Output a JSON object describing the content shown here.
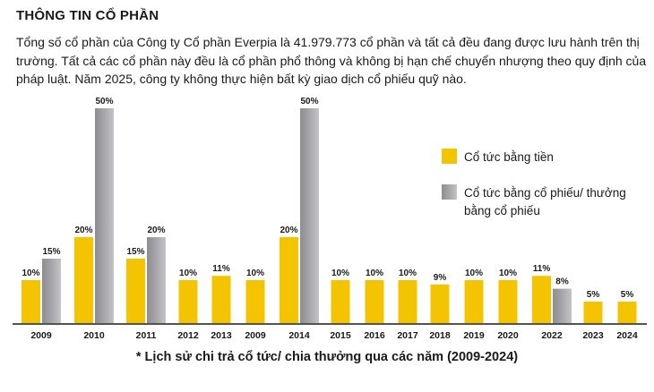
{
  "section_title": "THÔNG TIN CỔ PHẦN",
  "intro_text": "Tổng số cổ phần của Công ty Cổ phần Everpia là 41.979.773 cổ phần và tất cả đều đang được lưu hành trên thị trường. Tất cả các cổ phần này đều là cổ phần phổ thông và không bị hạn chế chuyển nhượng theo quy định của pháp luật. Năm 2025, công ty không thực hiện bất kỳ giao dịch cổ phiếu quỹ nào.",
  "caption": "* Lịch sử chi trả cổ tức/ chia thưởng qua các năm (2009-2024)",
  "colors": {
    "cash": "#F5C400",
    "stock": "#A4A4A8"
  },
  "chart_data": {
    "type": "bar",
    "categories": [
      "2009",
      "2010",
      "2011",
      "2012",
      "2013",
      "2009",
      "2014",
      "2015",
      "2016",
      "2017",
      "2018",
      "2019",
      "2020",
      "2022",
      "2023",
      "2024"
    ],
    "series": [
      {
        "name": "Cổ tức bằng tiền",
        "color": "#F5C400",
        "values": [
          10,
          20,
          15,
          10,
          11,
          10,
          20,
          10,
          10,
          10,
          9,
          10,
          10,
          11,
          5,
          5
        ]
      },
      {
        "name": "Cổ tức bằng cổ phiếu/ thưởng bằng cổ phiếu",
        "color": "#A4A4A8",
        "values": [
          15,
          50,
          20,
          null,
          null,
          null,
          50,
          null,
          null,
          null,
          null,
          null,
          null,
          8,
          null,
          null
        ]
      }
    ],
    "legend": [
      {
        "lines": [
          "Cổ tức bằng tiền"
        ],
        "color": "#F5C400"
      },
      {
        "lines": [
          "Cổ tức bằng cổ phiếu/ thưởng",
          "bằng cổ phiếu"
        ],
        "color": "#A4A4A8"
      }
    ],
    "value_suffix": "%",
    "ylim": [
      0,
      50
    ],
    "legend_position": "right",
    "grid": false
  }
}
